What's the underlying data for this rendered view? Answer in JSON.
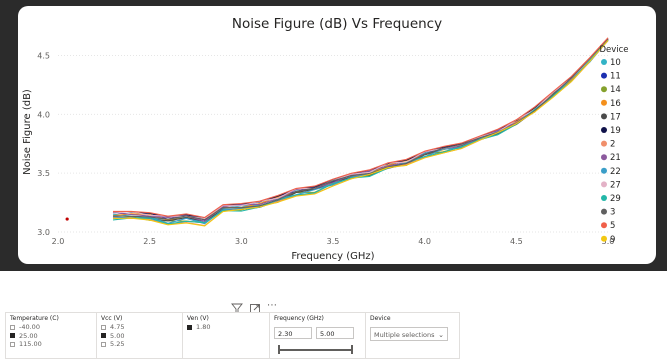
{
  "chart": {
    "title": "Noise Figure (dB) Vs Frequency",
    "legend_title": "Device",
    "devices": [
      {
        "name": "10",
        "color": "#33b3c6"
      },
      {
        "name": "11",
        "color": "#1c2fb0"
      },
      {
        "name": "14",
        "color": "#85a12d"
      },
      {
        "name": "16",
        "color": "#f4901c"
      },
      {
        "name": "17",
        "color": "#4a4a4a"
      },
      {
        "name": "19",
        "color": "#10124a"
      },
      {
        "name": "2",
        "color": "#f08f6b"
      },
      {
        "name": "21",
        "color": "#8c5a9e"
      },
      {
        "name": "22",
        "color": "#3a9ec8"
      },
      {
        "name": "27",
        "color": "#e3b2c7"
      },
      {
        "name": "29",
        "color": "#23b7a8"
      },
      {
        "name": "3",
        "color": "#606060"
      },
      {
        "name": "5",
        "color": "#f0604a"
      },
      {
        "name": "9",
        "color": "#f2c812"
      }
    ]
  },
  "chart_data": {
    "type": "line",
    "title": "Noise Figure (dB) Vs Frequency",
    "xlabel": "Frequency (GHz)",
    "ylabel": "Noise Figure (dB)",
    "xlim": [
      2.0,
      5.0
    ],
    "ylim": [
      3.0,
      4.7
    ],
    "xticks": [
      "2.0",
      "2.5",
      "3.0",
      "3.5",
      "4.0",
      "4.5",
      "5.0"
    ],
    "yticks": [
      "3.0",
      "3.5",
      "4.0",
      "4.5"
    ],
    "legend_placement": "right",
    "grid": "horizontal",
    "x": [
      2.3,
      2.4,
      2.5,
      2.6,
      2.7,
      2.8,
      2.9,
      3.0,
      3.1,
      3.2,
      3.3,
      3.4,
      3.5,
      3.6,
      3.7,
      3.8,
      3.9,
      4.0,
      4.1,
      4.2,
      4.3,
      4.4,
      4.5,
      4.6,
      4.7,
      4.8,
      4.9,
      5.0
    ],
    "base": [
      3.14,
      3.14,
      3.13,
      3.1,
      3.12,
      3.09,
      3.2,
      3.21,
      3.23,
      3.28,
      3.34,
      3.36,
      3.42,
      3.47,
      3.5,
      3.56,
      3.59,
      3.66,
      3.7,
      3.73,
      3.79,
      3.85,
      3.93,
      4.04,
      4.17,
      4.3,
      4.46,
      4.63
    ],
    "offsets": [
      0.0,
      0.02,
      -0.02,
      0.01,
      -0.01,
      0.03,
      -0.03,
      0.015,
      -0.015,
      0.025,
      -0.025,
      0.005,
      0.035,
      -0.035
    ],
    "stray_point": {
      "x": 2.05,
      "y": 3.11
    }
  },
  "slicers": {
    "temperature": {
      "title": "Temperature (C)",
      "options": [
        {
          "label": "-40.00",
          "checked": false
        },
        {
          "label": "25.00",
          "checked": true
        },
        {
          "label": "115.00",
          "checked": false
        }
      ]
    },
    "vcc": {
      "title": "Vcc (V)",
      "options": [
        {
          "label": "4.75",
          "checked": false
        },
        {
          "label": "5.00",
          "checked": true
        },
        {
          "label": "5.25",
          "checked": false
        }
      ]
    },
    "ven": {
      "title": "Ven (V)",
      "options": [
        {
          "label": "1.80",
          "checked": true
        }
      ]
    },
    "frequency": {
      "title": "Frequency (GHz)",
      "min": "2.30",
      "max": "5.00"
    },
    "device": {
      "title": "Device",
      "value": "Multiple selections"
    }
  },
  "toolbar": {
    "more_label": "⋯"
  }
}
